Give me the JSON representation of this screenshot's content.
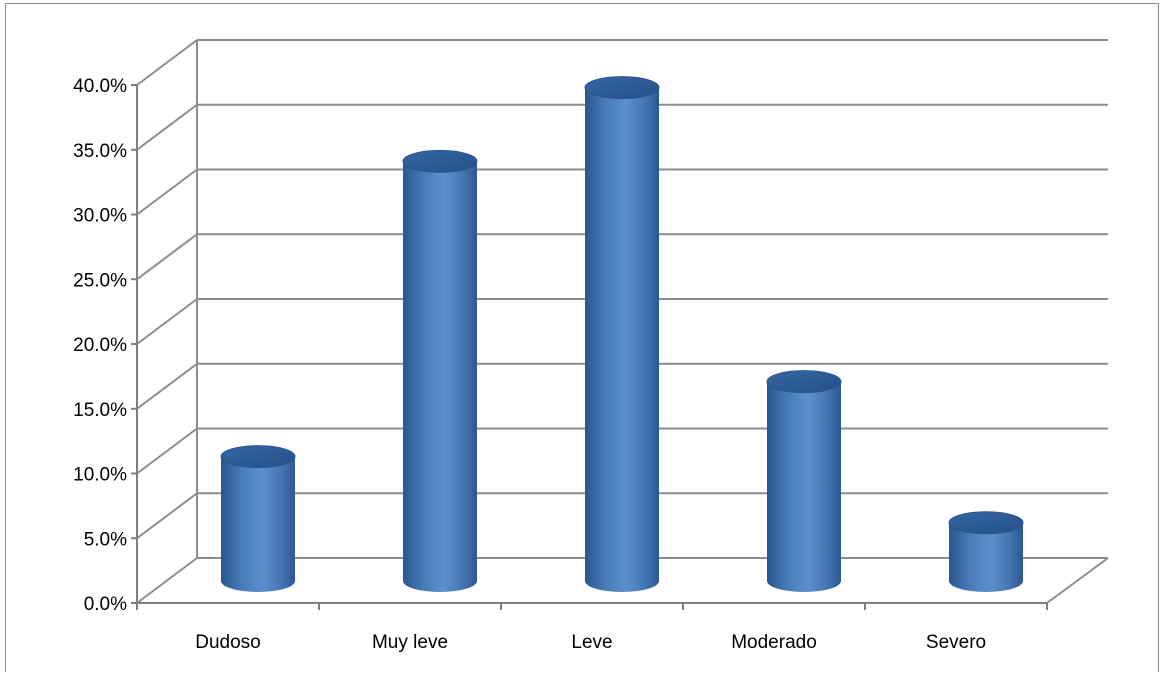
{
  "chart_data": {
    "type": "bar",
    "style": "3d-cylinder",
    "categories": [
      "Dudoso",
      "Muy leve",
      "Leve",
      "Moderado",
      "Severo"
    ],
    "values": [
      9.6,
      32.4,
      38.1,
      15.4,
      4.5
    ],
    "ylim": [
      0,
      40
    ],
    "ytick_step": 5,
    "ytick_labels": [
      "0.0%",
      "5.0%",
      "10.0%",
      "15.0%",
      "20.0%",
      "25.0%",
      "30.0%",
      "35.0%",
      "40.0%"
    ],
    "title": "",
    "xlabel": "",
    "ylabel": "",
    "grid": true,
    "legend": "none",
    "colors": {
      "bar_body": "#4a7ebb",
      "bar_top": "#2f5d96",
      "grid": "#8c8c8c",
      "axis": "#7f7f7f"
    }
  }
}
